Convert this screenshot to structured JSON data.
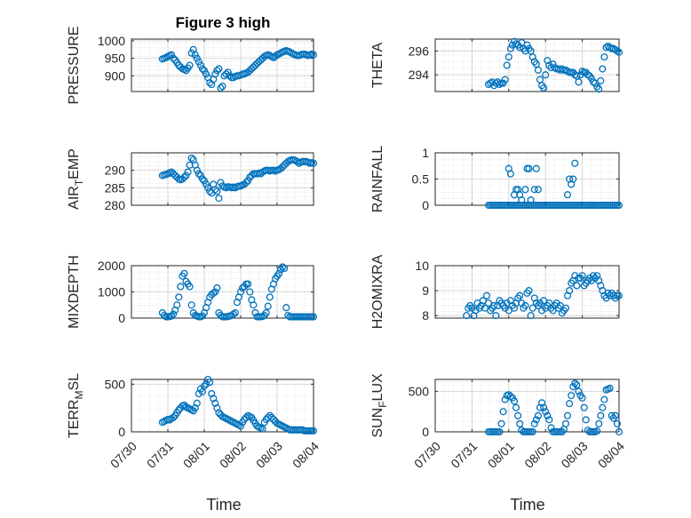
{
  "figure": {
    "title": "Figure 3 high",
    "xlabel": "Time",
    "marker_color": "#0072BD"
  },
  "chart_data": [
    {
      "type": "scatter",
      "ylabel": "PRESSURE",
      "ylabel_sub": "",
      "yticks": [
        900,
        950,
        1000
      ],
      "ylim": [
        855,
        1005
      ],
      "x_ticklabels": [],
      "x": [
        0.85,
        0.9,
        0.95,
        1.0,
        1.05,
        1.1,
        1.15,
        1.2,
        1.25,
        1.3,
        1.35,
        1.4,
        1.45,
        1.5,
        1.55,
        1.6,
        1.65,
        1.7,
        1.75,
        1.8,
        1.85,
        1.9,
        1.95,
        2.0,
        2.05,
        2.1,
        2.15,
        2.2,
        2.25,
        2.3,
        2.35,
        2.4,
        2.45,
        2.5,
        2.55,
        2.6,
        2.65,
        2.7,
        2.75,
        2.8,
        2.85,
        2.9,
        2.95,
        3.0,
        3.05,
        3.1,
        3.15,
        3.2,
        3.25,
        3.3,
        3.35,
        3.4,
        3.45,
        3.5,
        3.55,
        3.6,
        3.65,
        3.7,
        3.75,
        3.8,
        3.85,
        3.9,
        3.95,
        4.0,
        4.05,
        4.1,
        4.15,
        4.2,
        4.25,
        4.3,
        4.35,
        4.4,
        4.45,
        4.5,
        4.55,
        4.6,
        4.65,
        4.7,
        4.75,
        4.8,
        4.85,
        4.9,
        4.95,
        5.0
      ],
      "y": [
        948,
        950,
        952,
        955,
        958,
        960,
        950,
        945,
        938,
        930,
        925,
        920,
        918,
        915,
        922,
        930,
        965,
        975,
        960,
        950,
        940,
        930,
        920,
        915,
        905,
        895,
        880,
        875,
        890,
        905,
        915,
        920,
        865,
        870,
        900,
        905,
        910,
        900,
        895,
        895,
        898,
        900,
        900,
        902,
        905,
        905,
        908,
        910,
        915,
        920,
        925,
        930,
        935,
        940,
        945,
        950,
        955,
        958,
        960,
        958,
        955,
        952,
        955,
        960,
        962,
        965,
        968,
        970,
        972,
        970,
        968,
        965,
        962,
        960,
        958,
        958,
        960,
        962,
        962,
        960,
        958,
        960,
        962,
        960
      ]
    },
    {
      "type": "scatter",
      "ylabel": "THETA",
      "ylabel_sub": "",
      "yticks": [
        294,
        296
      ],
      "ylim": [
        292.6,
        297.0
      ],
      "x_ticklabels": [],
      "x": [
        1.45,
        1.5,
        1.55,
        1.6,
        1.65,
        1.7,
        1.75,
        1.8,
        1.85,
        1.9,
        1.95,
        2.0,
        2.05,
        2.1,
        2.15,
        2.2,
        2.25,
        2.3,
        2.35,
        2.4,
        2.45,
        2.5,
        2.55,
        2.6,
        2.65,
        2.7,
        2.75,
        2.8,
        2.85,
        2.9,
        2.95,
        3.0,
        3.05,
        3.1,
        3.15,
        3.2,
        3.25,
        3.3,
        3.35,
        3.4,
        3.45,
        3.5,
        3.55,
        3.6,
        3.65,
        3.7,
        3.75,
        3.8,
        3.85,
        3.9,
        3.95,
        4.0,
        4.05,
        4.1,
        4.15,
        4.2,
        4.25,
        4.3,
        4.35,
        4.4,
        4.45,
        4.5,
        4.55,
        4.6,
        4.65,
        4.7,
        4.75,
        4.8,
        4.85,
        4.9,
        4.95,
        5.0
      ],
      "y": [
        293.2,
        293.3,
        293.4,
        293.1,
        293.3,
        293.4,
        293.2,
        293.3,
        293.3,
        293.6,
        294.8,
        295.5,
        296.2,
        296.5,
        296.8,
        296.6,
        296.5,
        296.3,
        296.7,
        296.2,
        296.0,
        296.5,
        296.2,
        296.0,
        295.5,
        295.1,
        294.9,
        294.4,
        293.6,
        293.1,
        292.9,
        294.0,
        295.2,
        294.8,
        294.6,
        294.9,
        294.6,
        294.5,
        294.5,
        294.4,
        294.5,
        294.4,
        294.4,
        294.3,
        294.2,
        294.2,
        294.2,
        294.0,
        293.9,
        293.4,
        294.0,
        294.3,
        294.2,
        294.2,
        294.0,
        293.9,
        293.7,
        293.4,
        293.3,
        293.0,
        292.8,
        293.5,
        294.5,
        295.5,
        296.3,
        296.4,
        296.3,
        296.2,
        296.2,
        296.1,
        296.0,
        295.9
      ]
    },
    {
      "type": "scatter",
      "ylabel": "AIR",
      "ylabel_sub": "T",
      "ylabel_after": "EMP",
      "yticks": [
        280,
        285,
        290
      ],
      "ylim": [
        280,
        295
      ],
      "x_ticklabels": [],
      "x": [
        0.85,
        0.9,
        0.95,
        1.0,
        1.05,
        1.1,
        1.15,
        1.2,
        1.25,
        1.3,
        1.35,
        1.4,
        1.45,
        1.5,
        1.55,
        1.6,
        1.65,
        1.7,
        1.75,
        1.8,
        1.85,
        1.9,
        1.95,
        2.0,
        2.05,
        2.1,
        2.15,
        2.2,
        2.25,
        2.3,
        2.35,
        2.4,
        2.45,
        2.5,
        2.55,
        2.6,
        2.65,
        2.7,
        2.75,
        2.8,
        2.85,
        2.9,
        2.95,
        3.0,
        3.05,
        3.1,
        3.15,
        3.2,
        3.25,
        3.3,
        3.35,
        3.4,
        3.45,
        3.5,
        3.55,
        3.6,
        3.65,
        3.7,
        3.75,
        3.8,
        3.85,
        3.9,
        3.95,
        4.0,
        4.05,
        4.1,
        4.15,
        4.2,
        4.25,
        4.3,
        4.35,
        4.4,
        4.45,
        4.5,
        4.55,
        4.6,
        4.65,
        4.7,
        4.75,
        4.8,
        4.85,
        4.9,
        4.95,
        5.0
      ],
      "y": [
        288.5,
        288.7,
        288.8,
        289.0,
        289.3,
        289.5,
        289.0,
        288.5,
        288.0,
        287.5,
        287.3,
        287.5,
        288.0,
        288.5,
        289.5,
        291.5,
        293.5,
        293.0,
        291.5,
        290.0,
        289.0,
        288.5,
        287.5,
        287.0,
        286.0,
        285.0,
        284.0,
        283.5,
        286.0,
        284.5,
        284.0,
        282.0,
        286.5,
        285.5,
        285.2,
        285.0,
        285.3,
        285.2,
        285.0,
        285.2,
        285.0,
        285.3,
        285.5,
        285.5,
        285.8,
        286.0,
        286.5,
        287.0,
        288.0,
        288.5,
        289.0,
        289.0,
        289.0,
        289.2,
        289.0,
        289.5,
        289.8,
        290.0,
        290.0,
        289.8,
        290.0,
        290.0,
        289.8,
        290.0,
        290.2,
        290.5,
        291.0,
        291.5,
        292.0,
        292.5,
        292.8,
        293.0,
        293.0,
        292.8,
        292.5,
        292.0,
        292.3,
        292.5,
        292.5,
        292.5,
        292.3,
        292.0,
        292.2,
        292.0
      ]
    },
    {
      "type": "scatter",
      "ylabel": "RAINFALL",
      "ylabel_sub": "",
      "yticks": [
        0,
        0.5,
        1
      ],
      "ylim": [
        0,
        1.0
      ],
      "x_ticklabels": [],
      "x": [
        1.45,
        1.5,
        1.55,
        1.6,
        1.65,
        1.7,
        1.75,
        1.8,
        1.85,
        1.9,
        1.95,
        2.0,
        2.05,
        2.1,
        2.15,
        2.2,
        2.25,
        2.3,
        2.35,
        2.4,
        2.45,
        2.5,
        2.55,
        2.6,
        2.65,
        2.7,
        2.75,
        2.8,
        2.85,
        2.9,
        2.95,
        3.0,
        3.05,
        3.1,
        3.15,
        3.2,
        3.25,
        3.3,
        3.35,
        3.4,
        3.45,
        3.5,
        3.55,
        3.6,
        3.65,
        3.7,
        3.75,
        3.8,
        3.85,
        3.9,
        3.95,
        4.0,
        4.05,
        4.1,
        4.15,
        4.2,
        4.25,
        4.3,
        4.35,
        4.4,
        4.45,
        4.5,
        4.55,
        4.6,
        4.65,
        4.7,
        4.75,
        4.8,
        4.85,
        4.9,
        4.95,
        5.0,
        2.0,
        2.05,
        2.15,
        2.2,
        2.25,
        2.3,
        2.35,
        2.45,
        2.5,
        2.55,
        2.6,
        2.7,
        2.75,
        2.8,
        3.6,
        3.65,
        3.7,
        3.75,
        3.8
      ],
      "y": [
        0,
        0,
        0,
        0,
        0,
        0,
        0,
        0,
        0,
        0,
        0,
        0,
        0,
        0,
        0,
        0,
        0,
        0,
        0,
        0,
        0,
        0,
        0,
        0,
        0,
        0,
        0,
        0,
        0,
        0,
        0,
        0,
        0,
        0,
        0,
        0,
        0,
        0,
        0,
        0,
        0,
        0,
        0,
        0,
        0,
        0,
        0,
        0,
        0,
        0,
        0,
        0,
        0,
        0,
        0,
        0,
        0,
        0,
        0,
        0,
        0,
        0,
        0,
        0,
        0,
        0,
        0,
        0,
        0,
        0,
        0,
        0,
        0.7,
        0.6,
        0.2,
        0.3,
        0.3,
        0.2,
        0.1,
        0.3,
        0.7,
        0.7,
        0.1,
        0.3,
        0.7,
        0.3,
        0.2,
        0.5,
        0.4,
        0.5,
        0.8
      ]
    },
    {
      "type": "scatter",
      "ylabel": "MIXDEPTH",
      "ylabel_sub": "",
      "yticks": [
        0,
        1000,
        2000
      ],
      "ylim": [
        0,
        2000
      ],
      "x_ticklabels": [],
      "x": [
        0.85,
        0.9,
        0.95,
        1.0,
        1.05,
        1.1,
        1.15,
        1.2,
        1.25,
        1.3,
        1.35,
        1.4,
        1.45,
        1.5,
        1.55,
        1.6,
        1.65,
        1.7,
        1.75,
        1.8,
        1.85,
        1.9,
        1.95,
        2.0,
        2.05,
        2.1,
        2.15,
        2.2,
        2.25,
        2.3,
        2.35,
        2.4,
        2.45,
        2.5,
        2.55,
        2.6,
        2.65,
        2.7,
        2.75,
        2.8,
        2.85,
        2.9,
        2.95,
        3.0,
        3.05,
        3.1,
        3.15,
        3.2,
        3.25,
        3.3,
        3.35,
        3.4,
        3.45,
        3.5,
        3.55,
        3.6,
        3.65,
        3.7,
        3.75,
        3.8,
        3.85,
        3.9,
        3.95,
        4.0,
        4.05,
        4.1,
        4.15,
        4.2,
        4.25,
        4.3,
        4.35,
        4.4,
        4.45,
        4.5,
        4.55,
        4.6,
        4.65,
        4.7,
        4.75,
        4.8,
        4.85,
        4.9,
        4.95,
        5.0
      ],
      "y": [
        200,
        100,
        50,
        50,
        60,
        80,
        150,
        300,
        500,
        800,
        1200,
        1600,
        1700,
        1400,
        1300,
        1200,
        500,
        200,
        100,
        80,
        50,
        50,
        80,
        200,
        400,
        600,
        800,
        900,
        950,
        1000,
        1150,
        200,
        100,
        50,
        50,
        50,
        60,
        80,
        100,
        150,
        200,
        600,
        800,
        1000,
        1150,
        1200,
        1300,
        1300,
        1000,
        700,
        500,
        200,
        50,
        50,
        50,
        60,
        100,
        200,
        450,
        800,
        1100,
        1300,
        1500,
        1600,
        1700,
        1850,
        1950,
        1900,
        400,
        100,
        50,
        50,
        50,
        50,
        50,
        50,
        50,
        50,
        50,
        50,
        50,
        50,
        50,
        50
      ]
    },
    {
      "type": "scatter",
      "ylabel": "H2OMIXRA",
      "ylabel_sub": "",
      "yticks": [
        8,
        9,
        10
      ],
      "ylim": [
        7.9,
        10.0
      ],
      "x_ticklabels": [],
      "x": [
        0.85,
        0.9,
        0.95,
        1.0,
        1.05,
        1.1,
        1.15,
        1.2,
        1.25,
        1.3,
        1.35,
        1.4,
        1.45,
        1.5,
        1.55,
        1.6,
        1.65,
        1.7,
        1.75,
        1.8,
        1.85,
        1.9,
        1.95,
        2.0,
        2.05,
        2.1,
        2.15,
        2.2,
        2.25,
        2.3,
        2.35,
        2.4,
        2.45,
        2.5,
        2.55,
        2.6,
        2.65,
        2.7,
        2.75,
        2.8,
        2.85,
        2.9,
        2.95,
        3.0,
        3.05,
        3.1,
        3.15,
        3.2,
        3.25,
        3.3,
        3.35,
        3.4,
        3.45,
        3.5,
        3.55,
        3.6,
        3.65,
        3.7,
        3.75,
        3.8,
        3.85,
        3.9,
        3.95,
        4.0,
        4.05,
        4.1,
        4.15,
        4.2,
        4.25,
        4.3,
        4.35,
        4.4,
        4.45,
        4.5,
        4.55,
        4.6,
        4.65,
        4.7,
        4.75,
        4.8,
        4.85,
        4.9,
        4.95,
        5.0
      ],
      "y": [
        8.0,
        8.3,
        8.4,
        8.3,
        8.0,
        8.2,
        8.5,
        8.3,
        8.4,
        8.6,
        8.3,
        8.8,
        8.5,
        8.2,
        8.3,
        8.4,
        8.0,
        8.4,
        8.6,
        8.5,
        8.4,
        8.3,
        8.5,
        8.2,
        8.6,
        8.4,
        8.3,
        8.5,
        8.7,
        8.8,
        8.5,
        8.3,
        8.4,
        8.9,
        9.0,
        8.0,
        8.3,
        8.7,
        8.5,
        8.4,
        8.5,
        8.2,
        8.6,
        8.3,
        8.4,
        8.5,
        8.3,
        8.2,
        8.4,
        8.5,
        8.3,
        8.4,
        8.1,
        8.2,
        8.3,
        8.8,
        9.0,
        9.3,
        9.4,
        9.6,
        9.2,
        9.5,
        9.5,
        9.6,
        9.2,
        9.3,
        9.4,
        9.5,
        9.4,
        9.6,
        9.5,
        9.6,
        9.4,
        9.2,
        9.0,
        8.8,
        8.7,
        8.9,
        8.8,
        8.9,
        8.8,
        8.7,
        8.8,
        8.8
      ]
    },
    {
      "type": "scatter",
      "ylabel": "TERR",
      "ylabel_sub": "M",
      "ylabel_after": "SL",
      "yticks": [
        0,
        500
      ],
      "ylim": [
        0,
        550
      ],
      "x_ticklabels": [
        "07/30",
        "07/31",
        "08/01",
        "08/02",
        "08/03",
        "08/04"
      ],
      "x": [
        0.85,
        0.9,
        0.95,
        1.0,
        1.05,
        1.1,
        1.15,
        1.2,
        1.25,
        1.3,
        1.35,
        1.4,
        1.45,
        1.5,
        1.55,
        1.6,
        1.65,
        1.7,
        1.75,
        1.8,
        1.85,
        1.9,
        1.95,
        2.0,
        2.05,
        2.1,
        2.15,
        2.2,
        2.25,
        2.3,
        2.35,
        2.4,
        2.45,
        2.5,
        2.55,
        2.6,
        2.65,
        2.7,
        2.75,
        2.8,
        2.85,
        2.9,
        2.95,
        3.0,
        3.05,
        3.1,
        3.15,
        3.2,
        3.25,
        3.3,
        3.35,
        3.4,
        3.45,
        3.5,
        3.55,
        3.6,
        3.65,
        3.7,
        3.75,
        3.8,
        3.85,
        3.9,
        3.95,
        4.0,
        4.05,
        4.1,
        4.15,
        4.2,
        4.25,
        4.3,
        4.35,
        4.4,
        4.45,
        4.5,
        4.55,
        4.6,
        4.65,
        4.7,
        4.75,
        4.8,
        4.85,
        4.9,
        4.95,
        5.0
      ],
      "y": [
        100,
        110,
        120,
        130,
        125,
        140,
        150,
        170,
        200,
        230,
        250,
        270,
        280,
        260,
        250,
        240,
        230,
        220,
        250,
        300,
        400,
        450,
        420,
        480,
        500,
        550,
        520,
        400,
        350,
        300,
        250,
        200,
        180,
        160,
        150,
        140,
        130,
        120,
        110,
        100,
        90,
        80,
        70,
        60,
        100,
        130,
        150,
        170,
        160,
        150,
        120,
        90,
        60,
        50,
        40,
        30,
        100,
        130,
        150,
        170,
        150,
        130,
        110,
        90,
        80,
        70,
        60,
        50,
        40,
        30,
        20,
        20,
        20,
        20,
        20,
        20,
        20,
        20,
        10,
        10,
        10,
        10,
        10,
        10
      ]
    },
    {
      "type": "scatter",
      "ylabel": "SUN",
      "ylabel_sub": "F",
      "ylabel_after": "LUX",
      "yticks": [
        0,
        500
      ],
      "ylim": [
        0,
        650
      ],
      "x_ticklabels": [
        "07/30",
        "07/31",
        "08/01",
        "08/02",
        "08/03",
        "08/04"
      ],
      "x": [
        1.45,
        1.5,
        1.55,
        1.6,
        1.65,
        1.7,
        1.75,
        1.8,
        1.85,
        1.9,
        1.95,
        2.0,
        2.05,
        2.1,
        2.15,
        2.2,
        2.25,
        2.3,
        2.35,
        2.4,
        2.45,
        2.5,
        2.55,
        2.6,
        2.65,
        2.7,
        2.75,
        2.8,
        2.85,
        2.9,
        2.95,
        3.0,
        3.05,
        3.1,
        3.15,
        3.2,
        3.25,
        3.3,
        3.35,
        3.4,
        3.45,
        3.5,
        3.55,
        3.6,
        3.65,
        3.7,
        3.75,
        3.8,
        3.85,
        3.9,
        3.95,
        4.0,
        4.05,
        4.1,
        4.15,
        4.2,
        4.25,
        4.3,
        4.35,
        4.4,
        4.45,
        4.5,
        4.55,
        4.6,
        4.65,
        4.7,
        4.75,
        4.8,
        4.85,
        4.9,
        4.95,
        5.0
      ],
      "y": [
        0,
        0,
        0,
        0,
        0,
        0,
        0,
        100,
        250,
        400,
        450,
        460,
        440,
        420,
        380,
        300,
        200,
        100,
        20,
        0,
        0,
        0,
        0,
        0,
        0,
        100,
        150,
        200,
        300,
        360,
        300,
        250,
        200,
        150,
        50,
        0,
        0,
        0,
        0,
        0,
        0,
        30,
        100,
        200,
        350,
        450,
        560,
        600,
        580,
        500,
        450,
        420,
        300,
        150,
        20,
        0,
        0,
        0,
        0,
        10,
        100,
        200,
        300,
        400,
        520,
        530,
        540,
        200,
        170,
        200,
        100,
        0
      ]
    }
  ]
}
